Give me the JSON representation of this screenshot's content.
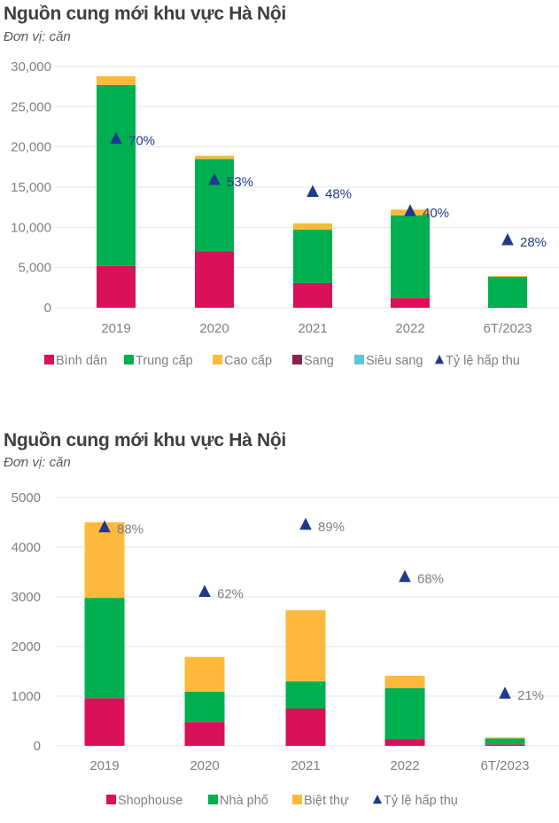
{
  "chart_data": [
    {
      "type": "bar",
      "stacked": true,
      "title": "Nguồn cung mới khu vực Hà Nội",
      "subtitle": "Đơn vị: căn",
      "categories": [
        "2019",
        "2020",
        "2021",
        "2022",
        "6T/2023"
      ],
      "ylim": [
        0,
        30000
      ],
      "yticks": [
        "0",
        "5,000",
        "10,000",
        "15,000",
        "20,000",
        "25,000",
        "30,000"
      ],
      "ytick_values": [
        0,
        5000,
        10000,
        15000,
        20000,
        25000,
        30000
      ],
      "grid": true,
      "legend_position": "bottom",
      "series": [
        {
          "name": "Bình dân",
          "color": "#D81159",
          "values": [
            5200,
            7000,
            3100,
            1200,
            100
          ]
        },
        {
          "name": "Trung cấp",
          "color": "#00B050",
          "values": [
            22500,
            11500,
            6600,
            10300,
            3800
          ]
        },
        {
          "name": "Cao cấp",
          "color": "#FDB93B",
          "values": [
            1100,
            400,
            800,
            700,
            50
          ]
        },
        {
          "name": "Sang",
          "color": "#8B2252",
          "values": [
            0,
            0,
            0,
            0,
            0
          ]
        },
        {
          "name": "Siêu sang",
          "color": "#5CC8D7",
          "values": [
            0,
            0,
            0,
            0,
            0
          ]
        }
      ],
      "ratio_series": {
        "name": "Tỷ lệ hấp thu",
        "color": "#1F3A8A",
        "values": [
          70,
          53,
          48,
          40,
          28
        ],
        "labels": [
          "70%",
          "53%",
          "48%",
          "40%",
          "28%"
        ],
        "ylim": [
          0,
          100
        ]
      }
    },
    {
      "type": "bar",
      "stacked": true,
      "title": "Nguồn cung mới khu vực Hà Nội",
      "subtitle": "Đơn vị: căn",
      "categories": [
        "2019",
        "2020",
        "2021",
        "2022",
        "6T/2023"
      ],
      "ylim": [
        0,
        5000
      ],
      "yticks": [
        "0",
        "1000",
        "2000",
        "3000",
        "4000",
        "5000"
      ],
      "ytick_values": [
        0,
        1000,
        2000,
        3000,
        4000,
        5000
      ],
      "grid": true,
      "legend_position": "bottom",
      "series": [
        {
          "name": "Shophouse",
          "color": "#D81159",
          "values": [
            960,
            480,
            750,
            140,
            30
          ]
        },
        {
          "name": "Nhà phố",
          "color": "#00B050",
          "values": [
            2020,
            610,
            550,
            1020,
            120
          ]
        },
        {
          "name": "Biệt thự",
          "color": "#FDB93B",
          "values": [
            1520,
            700,
            1430,
            250,
            20
          ]
        }
      ],
      "ratio_series": {
        "name": "Tỷ lệ hấp thụ",
        "color": "#1F3A8A",
        "values": [
          88,
          62,
          89,
          68,
          21
        ],
        "labels": [
          "88%",
          "62%",
          "89%",
          "68%",
          "21%"
        ],
        "ylim": [
          0,
          100
        ]
      }
    }
  ]
}
